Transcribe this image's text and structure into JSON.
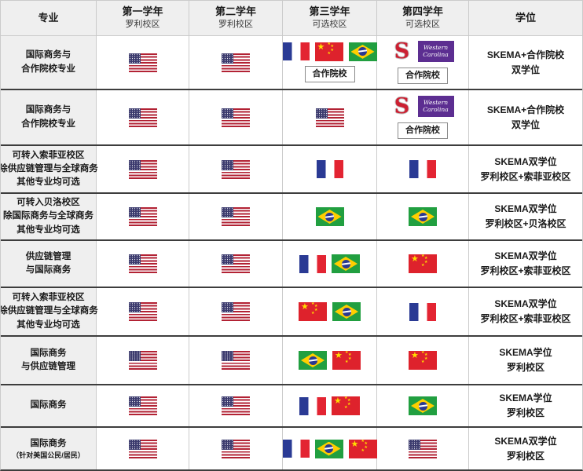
{
  "header": {
    "major": "专业",
    "years": [
      {
        "title": "第一学年",
        "subtitle": "罗利校区"
      },
      {
        "title": "第二学年",
        "subtitle": "罗利校区"
      },
      {
        "title": "第三学年",
        "subtitle": "可选校区"
      },
      {
        "title": "第四学年",
        "subtitle": "可选校区"
      }
    ],
    "degree": "学位"
  },
  "labels": {
    "partner_box": "合作院校"
  },
  "logos": {
    "ncstate_letter": "S",
    "wcu_lines": [
      "Western",
      "Carolina"
    ]
  },
  "flag_legend": {
    "flag-us": "united-states-flag",
    "flag-fr": "france-flag",
    "flag-cn": "china-flag",
    "flag-br": "brazil-flag",
    "logo-ncstate": "nc-state-logo",
    "logo-wcu": "western-carolina-logo"
  },
  "colors": {
    "header_bg": "#efefef",
    "light_border": "#cbcbcb",
    "dark_divider": "#3d3d3d",
    "text": "#1a1a1a",
    "us_red": "#b22234",
    "us_blue": "#3c3b6e",
    "fr_blue": "#2a3a94",
    "fr_red": "#e32432",
    "cn_red": "#de222c",
    "star_yellow": "#ffde00",
    "br_green": "#219f40",
    "br_yellow": "#ffce00",
    "br_blue": "#2a3890",
    "ncstate_red": "#cc2032",
    "wcu_purple": "#5c2e91"
  },
  "rows": [
    {
      "major": [
        "国际商务与",
        "合作院校专业"
      ],
      "years": [
        {
          "items": [
            "flag-us"
          ]
        },
        {
          "items": [
            "flag-us"
          ]
        },
        {
          "items": [
            "flag-fr",
            "flag-cn",
            "flag-br"
          ],
          "partner": true
        },
        {
          "items": [
            "logo-ncstate",
            "logo-wcu"
          ],
          "partner": true
        }
      ],
      "degree": [
        "SKEMA+合作院校",
        "双学位"
      ]
    },
    {
      "major": [
        "国际商务与",
        "合作院校专业"
      ],
      "years": [
        {
          "items": [
            "flag-us"
          ]
        },
        {
          "items": [
            "flag-us"
          ]
        },
        {
          "items": [
            "flag-us"
          ]
        },
        {
          "items": [
            "logo-ncstate",
            "logo-wcu"
          ],
          "partner": true
        }
      ],
      "degree": [
        "SKEMA+合作院校",
        "双学位"
      ]
    },
    {
      "major": [
        "可转入索菲亚校区",
        "除供应链管理与全球商务",
        "其他专业均可选"
      ],
      "years": [
        {
          "items": [
            "flag-us"
          ]
        },
        {
          "items": [
            "flag-us"
          ]
        },
        {
          "items": [
            "flag-fr"
          ]
        },
        {
          "items": [
            "flag-fr"
          ]
        }
      ],
      "degree": [
        "SKEMA双学位",
        "罗利校区+索菲亚校区"
      ]
    },
    {
      "major": [
        "可转入贝洛校区",
        "除国际商务与全球商务",
        "其他专业均可选"
      ],
      "years": [
        {
          "items": [
            "flag-us"
          ]
        },
        {
          "items": [
            "flag-us"
          ]
        },
        {
          "items": [
            "flag-br"
          ]
        },
        {
          "items": [
            "flag-br"
          ]
        }
      ],
      "degree": [
        "SKEMA双学位",
        "罗利校区+贝洛校区"
      ]
    },
    {
      "major": [
        "供应链管理",
        "与国际商务"
      ],
      "years": [
        {
          "items": [
            "flag-us"
          ]
        },
        {
          "items": [
            "flag-us"
          ]
        },
        {
          "items": [
            "flag-fr",
            "flag-br"
          ]
        },
        {
          "items": [
            "flag-cn"
          ]
        }
      ],
      "degree": [
        "SKEMA双学位",
        "罗利校区+索菲亚校区"
      ]
    },
    {
      "major": [
        "可转入索菲亚校区",
        "除供应链管理与全球商务",
        "其他专业均可选"
      ],
      "years": [
        {
          "items": [
            "flag-us"
          ]
        },
        {
          "items": [
            "flag-us"
          ]
        },
        {
          "items": [
            "flag-cn",
            "flag-br"
          ]
        },
        {
          "items": [
            "flag-fr"
          ]
        }
      ],
      "degree": [
        "SKEMA双学位",
        "罗利校区+索菲亚校区"
      ]
    },
    {
      "major": [
        "国际商务",
        "与供应链管理"
      ],
      "years": [
        {
          "items": [
            "flag-us"
          ]
        },
        {
          "items": [
            "flag-us"
          ]
        },
        {
          "items": [
            "flag-br",
            "flag-cn"
          ]
        },
        {
          "items": [
            "flag-cn"
          ]
        }
      ],
      "degree": [
        "SKEMA学位",
        "罗利校区"
      ]
    },
    {
      "major": [
        "国际商务"
      ],
      "years": [
        {
          "items": [
            "flag-us"
          ]
        },
        {
          "items": [
            "flag-us"
          ]
        },
        {
          "items": [
            "flag-fr",
            "flag-cn"
          ]
        },
        {
          "items": [
            "flag-br"
          ]
        }
      ],
      "degree": [
        "SKEMA学位",
        "罗利校区"
      ]
    },
    {
      "major": [
        "国际商务"
      ],
      "major_small": "（针对美国公民/居民）",
      "years": [
        {
          "items": [
            "flag-us"
          ]
        },
        {
          "items": [
            "flag-us"
          ]
        },
        {
          "items": [
            "flag-fr",
            "flag-br",
            "flag-cn"
          ]
        },
        {
          "items": [
            "flag-us"
          ]
        }
      ],
      "degree": [
        "SKEMA双学位",
        "罗利校区"
      ]
    }
  ]
}
